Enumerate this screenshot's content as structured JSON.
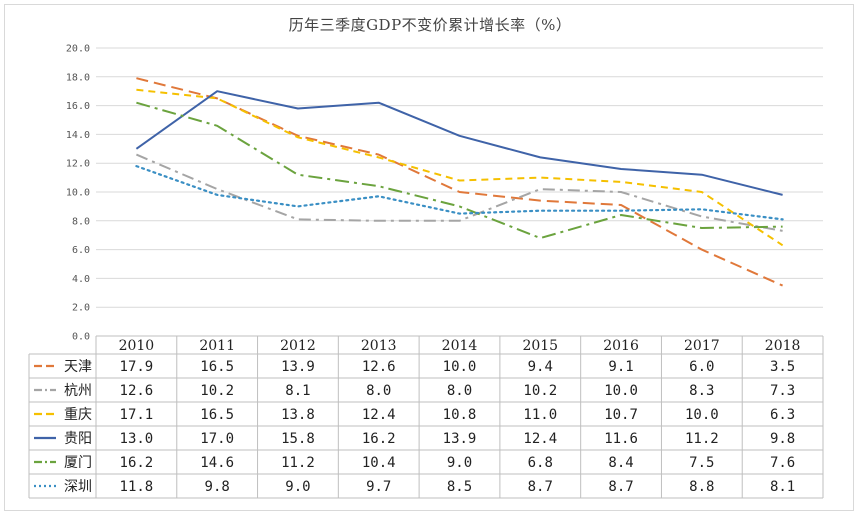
{
  "chart_data": {
    "type": "line",
    "title": "历年三季度GDP不变价累计增长率（%）",
    "categories": [
      "2010",
      "2011",
      "2012",
      "2013",
      "2014",
      "2015",
      "2016",
      "2017",
      "2018"
    ],
    "ylim": [
      0,
      20
    ],
    "yticks": [
      "0.0",
      "2.0",
      "4.0",
      "6.0",
      "8.0",
      "10.0",
      "12.0",
      "14.0",
      "16.0",
      "18.0",
      "20.0"
    ],
    "grid": true,
    "legend": "data-table",
    "series": [
      {
        "name": "天津",
        "color": "#E0783A",
        "dash": "long-dash",
        "values": [
          17.9,
          16.5,
          13.9,
          12.6,
          10.0,
          9.4,
          9.1,
          6.0,
          3.5
        ],
        "labels": [
          "17.9",
          "16.5",
          "13.9",
          "12.6",
          "10.0",
          "9.4",
          "9.1",
          "6.0",
          "3.5"
        ]
      },
      {
        "name": "杭州",
        "color": "#A5A5A5",
        "dash": "dash-dot",
        "values": [
          12.6,
          10.2,
          8.1,
          8.0,
          8.0,
          10.2,
          10.0,
          8.3,
          7.3
        ],
        "labels": [
          "12.6",
          "10.2",
          "8.1",
          "8.0",
          "8.0",
          "10.2",
          "10.0",
          "8.3",
          "7.3"
        ]
      },
      {
        "name": "重庆",
        "color": "#F5C000",
        "dash": "dash",
        "values": [
          17.1,
          16.5,
          13.8,
          12.4,
          10.8,
          11.0,
          10.7,
          10.0,
          6.3
        ],
        "labels": [
          "17.1",
          "16.5",
          "13.8",
          "12.4",
          "10.8",
          "11.0",
          "10.7",
          "10.0",
          "6.3"
        ]
      },
      {
        "name": "贵阳",
        "color": "#3F63A8",
        "dash": "solid",
        "values": [
          13.0,
          17.0,
          15.8,
          16.2,
          13.9,
          12.4,
          11.6,
          11.2,
          9.8
        ],
        "labels": [
          "13.0",
          "17.0",
          "15.8",
          "16.2",
          "13.9",
          "12.4",
          "11.6",
          "11.2",
          "9.8"
        ]
      },
      {
        "name": "厦门",
        "color": "#6BA33E",
        "dash": "long-dash-dot",
        "values": [
          16.2,
          14.6,
          11.2,
          10.4,
          9.0,
          6.8,
          8.4,
          7.5,
          7.6
        ],
        "labels": [
          "16.2",
          "14.6",
          "11.2",
          "10.4",
          "9.0",
          "6.8",
          "8.4",
          "7.5",
          "7.6"
        ]
      },
      {
        "name": "深圳",
        "color": "#3A8FC4",
        "dash": "dot",
        "values": [
          11.8,
          9.8,
          9.0,
          9.7,
          8.5,
          8.7,
          8.7,
          8.8,
          8.1
        ],
        "labels": [
          "11.8",
          "9.8",
          "9.0",
          "9.7",
          "8.5",
          "8.7",
          "8.7",
          "8.8",
          "8.1"
        ]
      }
    ]
  }
}
